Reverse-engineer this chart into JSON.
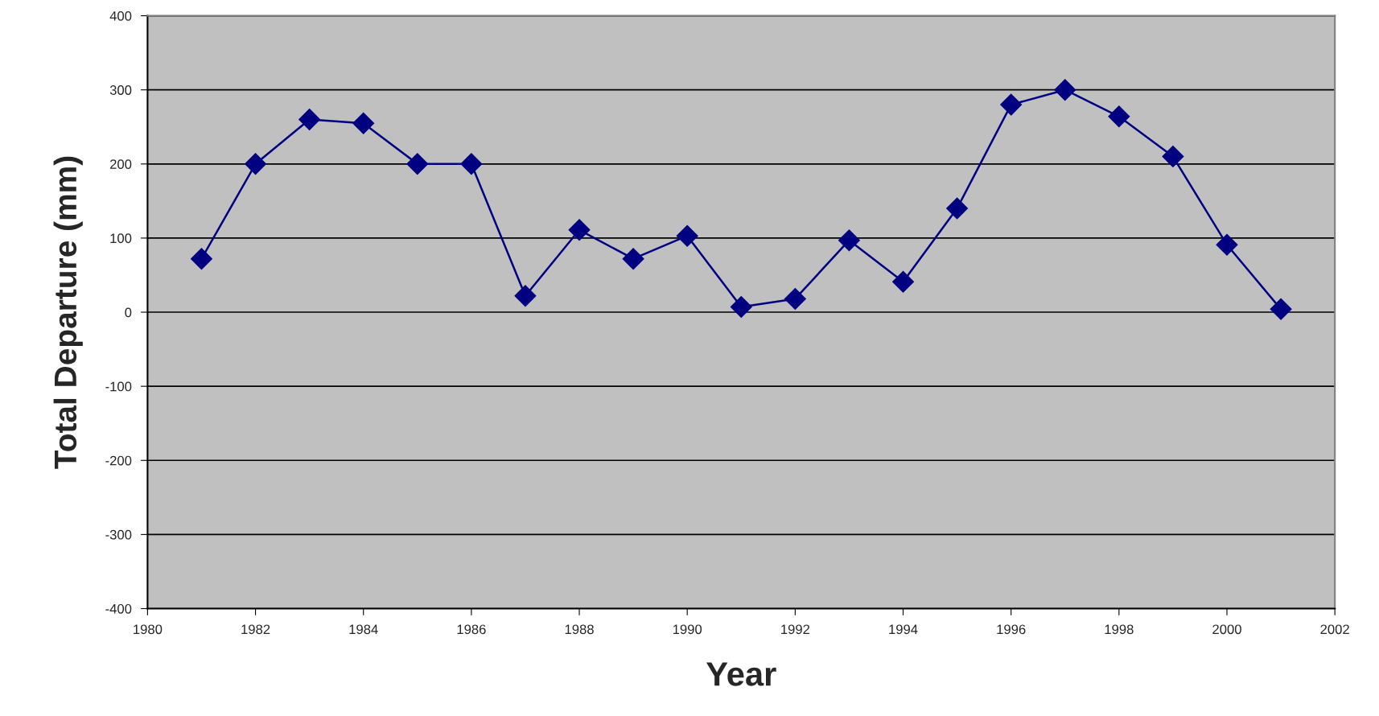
{
  "chart_data": {
    "type": "line",
    "xlabel": "Year",
    "ylabel": "Total Departure (mm)",
    "x": [
      1981,
      1982,
      1983,
      1984,
      1985,
      1986,
      1987,
      1988,
      1989,
      1990,
      1991,
      1992,
      1993,
      1994,
      1995,
      1996,
      1997,
      1998,
      1999,
      2000,
      2001
    ],
    "series": [
      {
        "color": "#000080",
        "values": [
          72,
          200,
          260,
          255,
          200,
          200,
          22,
          111,
          72,
          103,
          7,
          18,
          97,
          41,
          140,
          280,
          300,
          264,
          210,
          91,
          4
        ]
      }
    ],
    "xlim": [
      1980,
      2002
    ],
    "xticks": [
      1980,
      1982,
      1984,
      1986,
      1988,
      1990,
      1992,
      1994,
      1996,
      1998,
      2000,
      2002
    ],
    "ylim": [
      -400,
      400
    ],
    "yticks": [
      -400,
      -300,
      -200,
      -100,
      0,
      100,
      200,
      300,
      400
    ],
    "grid": "y",
    "legend": false,
    "marker": "diamond",
    "line_style": "solid"
  }
}
